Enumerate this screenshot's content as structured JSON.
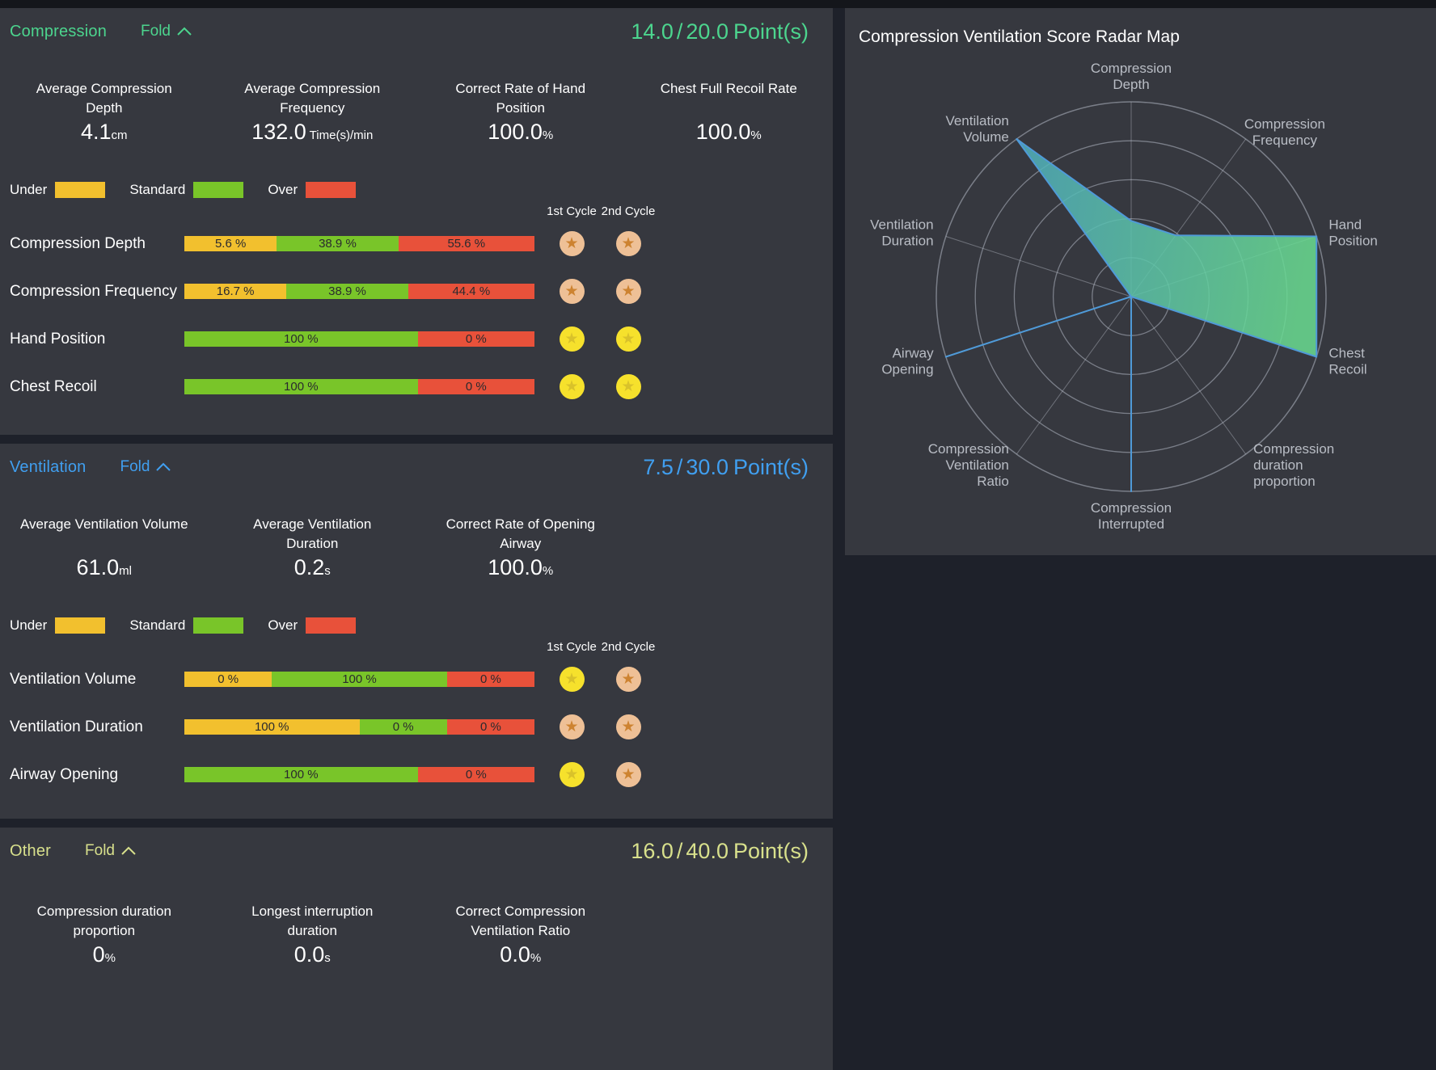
{
  "colors": {
    "under": "#f2c02e",
    "standard": "#79c529",
    "over": "#e8513a",
    "badge_gold_bg": "#f6e12c",
    "badge_gold_star": "#d9c22a",
    "badge_bronze_bg": "#eec096",
    "badge_bronze_star": "#cd8331",
    "radar_stroke": "#4f9ad8",
    "radar_fill_start": "#4aa5c9",
    "radar_fill_end": "#6adc91"
  },
  "panels": {
    "compression": {
      "title": "Compression",
      "accent": "#4cd58e",
      "fold_label": "Fold",
      "score_current": "14.0",
      "score_separator": "/",
      "score_total": "20.0",
      "score_suffix": "Point(s)",
      "stats": [
        {
          "title_lines": [
            "Average Compression",
            "Depth"
          ],
          "value": "4.1",
          "unit": "cm"
        },
        {
          "title_lines": [
            "Average Compression",
            "Frequency"
          ],
          "value": "132.0",
          "unit": " Time(s)/min"
        },
        {
          "title_lines": [
            "Correct Rate of Hand",
            "Position"
          ],
          "value": "100.0",
          "unit": "%"
        },
        {
          "title_lines": [
            "Chest Full Recoil Rate"
          ],
          "value": "100.0",
          "unit": "%"
        }
      ],
      "legend": [
        {
          "label": "Under",
          "type": "under"
        },
        {
          "label": "Standard",
          "type": "standard"
        },
        {
          "label": "Over",
          "type": "over"
        }
      ],
      "cycle_headers": [
        "1st Cycle",
        "2nd Cycle"
      ],
      "bars": [
        {
          "label": "Compression Depth",
          "segments": [
            {
              "text": "5.6 %",
              "value": 5.6,
              "type": "under"
            },
            {
              "text": "38.9 %",
              "value": 38.9,
              "type": "standard"
            },
            {
              "text": "55.6 %",
              "value": 55.6,
              "type": "over"
            }
          ],
          "stars": [
            "bronze",
            "bronze"
          ]
        },
        {
          "label": "Compression Frequency",
          "segments": [
            {
              "text": "16.7 %",
              "value": 16.7,
              "type": "under"
            },
            {
              "text": "38.9 %",
              "value": 38.9,
              "type": "standard"
            },
            {
              "text": "44.4 %",
              "value": 44.4,
              "type": "over"
            }
          ],
          "stars": [
            "bronze",
            "bronze"
          ]
        },
        {
          "label": "Hand Position",
          "segments": [
            {
              "text": "100 %",
              "value": 100,
              "type": "standard"
            },
            {
              "text": "0 %",
              "value": 0,
              "type": "over"
            }
          ],
          "stars": [
            "gold",
            "gold"
          ]
        },
        {
          "label": "Chest Recoil",
          "segments": [
            {
              "text": "100 %",
              "value": 100,
              "type": "standard"
            },
            {
              "text": "0 %",
              "value": 0,
              "type": "over"
            }
          ],
          "stars": [
            "gold",
            "gold"
          ]
        }
      ]
    },
    "ventilation": {
      "title": "Ventilation",
      "accent": "#409ff0",
      "fold_label": "Fold",
      "score_current": "7.5",
      "score_separator": "/",
      "score_total": "30.0",
      "score_suffix": "Point(s)",
      "stats": [
        {
          "title_lines": [
            "Average Ventilation Volume"
          ],
          "value": "61.0",
          "unit": "ml"
        },
        {
          "title_lines": [
            "Average Ventilation",
            "Duration"
          ],
          "value": "0.2",
          "unit": "s"
        },
        {
          "title_lines": [
            "Correct Rate of Opening",
            "Airway"
          ],
          "value": "100.0",
          "unit": "%"
        }
      ],
      "legend": [
        {
          "label": "Under",
          "type": "under"
        },
        {
          "label": "Standard",
          "type": "standard"
        },
        {
          "label": "Over",
          "type": "over"
        }
      ],
      "cycle_headers": [
        "1st Cycle",
        "2nd Cycle"
      ],
      "bars": [
        {
          "label": "Ventilation Volume",
          "segments": [
            {
              "text": "0 %",
              "value": 0,
              "type": "under"
            },
            {
              "text": "100 %",
              "value": 100,
              "type": "standard"
            },
            {
              "text": "0 %",
              "value": 0,
              "type": "over"
            }
          ],
          "stars": [
            "gold",
            "bronze"
          ]
        },
        {
          "label": "Ventilation Duration",
          "segments": [
            {
              "text": "100 %",
              "value": 100,
              "type": "under"
            },
            {
              "text": "0 %",
              "value": 0,
              "type": "standard"
            },
            {
              "text": "0 %",
              "value": 0,
              "type": "over"
            }
          ],
          "stars": [
            "bronze",
            "bronze"
          ]
        },
        {
          "label": "Airway Opening",
          "segments": [
            {
              "text": "100 %",
              "value": 100,
              "type": "standard"
            },
            {
              "text": "0 %",
              "value": 0,
              "type": "over"
            }
          ],
          "stars": [
            "gold",
            "bronze"
          ]
        }
      ]
    },
    "other": {
      "title": "Other",
      "accent": "#d8e08c",
      "fold_label": "Fold",
      "score_current": "16.0",
      "score_separator": "/",
      "score_total": "40.0",
      "score_suffix": "Point(s)",
      "stats": [
        {
          "title_lines": [
            "Compression duration",
            "proportion"
          ],
          "value": "0",
          "unit": "%"
        },
        {
          "title_lines": [
            "Longest interruption",
            "duration"
          ],
          "value": "0.0",
          "unit": "s"
        },
        {
          "title_lines": [
            "Correct Compression",
            "Ventilation Ratio"
          ],
          "value": "0.0",
          "unit": "%"
        }
      ]
    }
  },
  "radar": {
    "title": "Compression Ventilation Score Radar Map"
  },
  "chart_data": {
    "type": "radar",
    "title": "Compression Ventilation Score Radar Map",
    "axes": [
      {
        "label_lines": [
          "Compression",
          "Depth"
        ],
        "anchor": "middle"
      },
      {
        "label_lines": [
          "Compression",
          "Frequency"
        ],
        "anchor": "middle"
      },
      {
        "label_lines": [
          "Hand",
          "Position"
        ],
        "anchor": "start"
      },
      {
        "label_lines": [
          "Chest",
          "Recoil"
        ],
        "anchor": "start"
      },
      {
        "label_lines": [
          "Compression",
          "duration",
          "proportion"
        ],
        "anchor": "start"
      },
      {
        "label_lines": [
          "Compression",
          "Interrupted"
        ],
        "anchor": "middle"
      },
      {
        "label_lines": [
          "Compression",
          "Ventilation",
          "Ratio"
        ],
        "anchor": "end"
      },
      {
        "label_lines": [
          "Airway",
          "Opening"
        ],
        "anchor": "end"
      },
      {
        "label_lines": [
          "Ventilation",
          "Duration"
        ],
        "anchor": "end"
      },
      {
        "label_lines": [
          "Ventilation",
          "Volume"
        ],
        "anchor": "end"
      }
    ],
    "values": [
      0.389,
      0.389,
      1.0,
      1.0,
      0.0,
      1.0,
      0.0,
      1.0,
      0.0,
      1.0
    ],
    "value_max": 1.0,
    "rings": 5,
    "grid_shape": "circle",
    "legend_position": "none"
  }
}
